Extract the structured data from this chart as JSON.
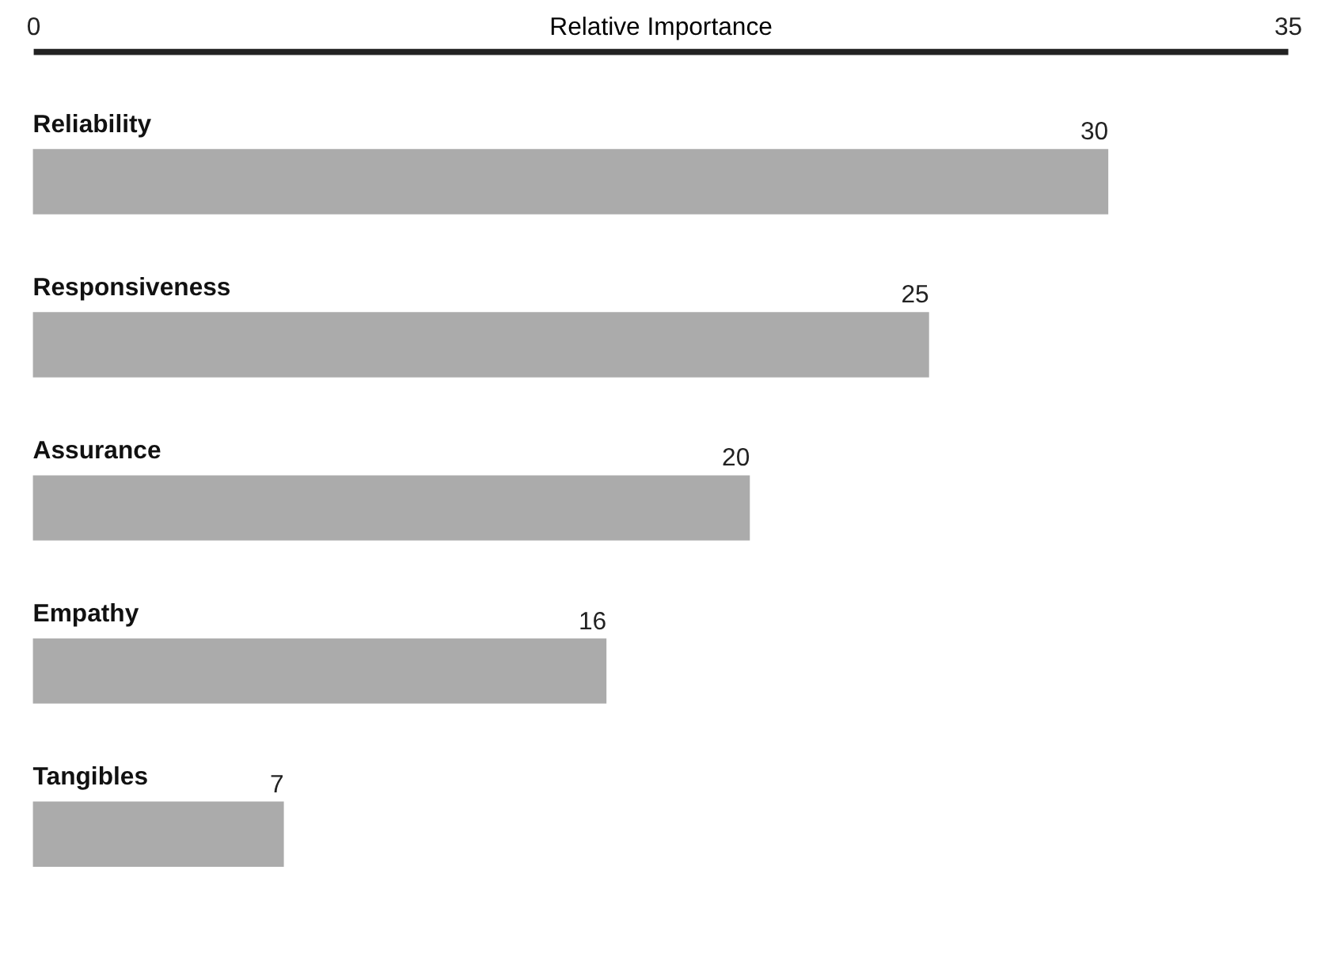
{
  "chart_data": {
    "type": "bar",
    "orientation": "horizontal",
    "xlabel": "Relative Importance",
    "categories": [
      "Reliability",
      "Responsiveness",
      "Assurance",
      "Empathy",
      "Tangibles"
    ],
    "values": [
      30,
      25,
      20,
      16,
      7
    ],
    "color": "#ababab",
    "xlim": [
      0,
      35
    ],
    "xticks": [
      0,
      35
    ],
    "data_labels": true,
    "grid": false
  }
}
